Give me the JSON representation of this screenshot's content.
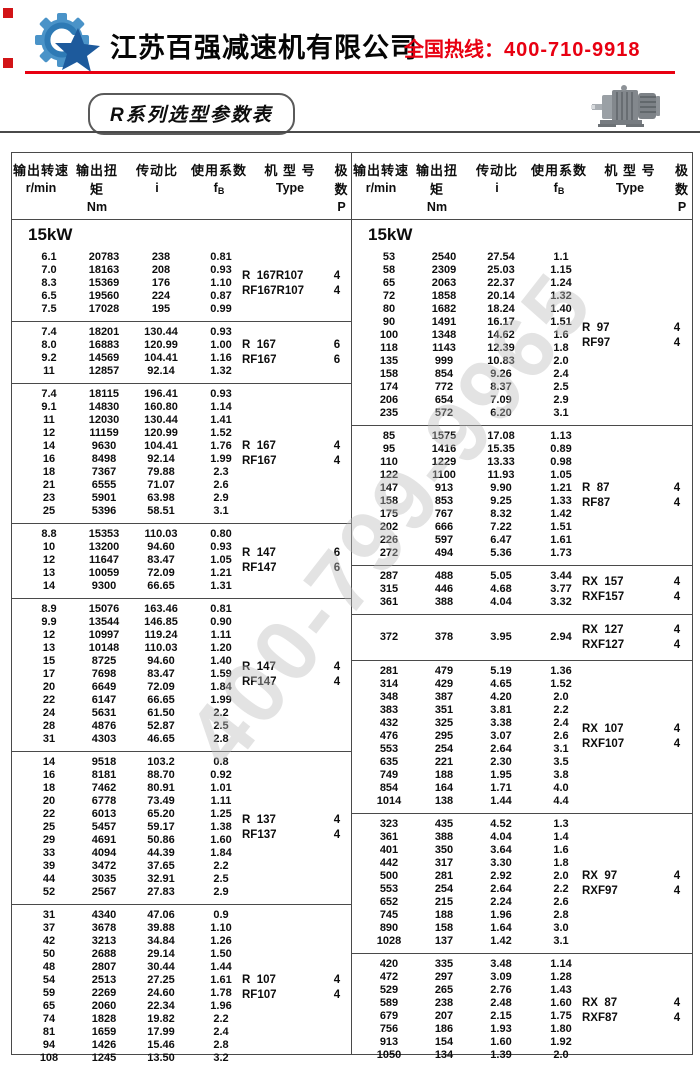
{
  "header": {
    "company": "江苏百强减速机有限公司",
    "hotline_label": "全国热线：",
    "hotline_number": "400-710-9918",
    "badge": "R系列选型参数表",
    "accent_red": "#e80011",
    "logo_blue_light": "#4a93c8",
    "logo_blue_dark": "#1d5a9c"
  },
  "watermark": "400-799-9965",
  "table_header": {
    "columns": [
      {
        "cn": "输出转速",
        "en": "r/min"
      },
      {
        "cn": "输出扭矩",
        "en": "Nm"
      },
      {
        "cn": "传动比",
        "en": "i"
      },
      {
        "cn": "使用系数",
        "en": "f",
        "en_sub": "B"
      },
      {
        "cn": "机 型 号",
        "en": "Type"
      },
      {
        "cn": "极 数",
        "en": "P"
      }
    ],
    "power_label": "15kW"
  },
  "left_sections": [
    {
      "rows": [
        [
          "6.1",
          "20783",
          "238",
          "0.81"
        ],
        [
          "7.0",
          "18163",
          "208",
          "0.93"
        ],
        [
          "8.3",
          "15369",
          "176",
          "1.10"
        ],
        [
          "6.5",
          "19560",
          "224",
          "0.87"
        ],
        [
          "7.5",
          "17028",
          "195",
          "0.99"
        ]
      ],
      "types": [
        {
          "name": "R  167R107",
          "p": "4"
        },
        {
          "name": "RF167R107",
          "p": "4"
        }
      ]
    },
    {
      "rows": [
        [
          "7.4",
          "18201",
          "130.44",
          "0.93"
        ],
        [
          "8.0",
          "16883",
          "120.99",
          "1.00"
        ],
        [
          "9.2",
          "14569",
          "104.41",
          "1.16"
        ],
        [
          "11",
          "12857",
          "92.14",
          "1.32"
        ]
      ],
      "types": [
        {
          "name": "R  167",
          "p": "6"
        },
        {
          "name": "RF167",
          "p": "6"
        }
      ]
    },
    {
      "rows": [
        [
          "7.4",
          "18115",
          "196.41",
          "0.93"
        ],
        [
          "9.1",
          "14830",
          "160.80",
          "1.14"
        ],
        [
          "11",
          "12030",
          "130.44",
          "1.41"
        ],
        [
          "12",
          "11159",
          "120.99",
          "1.52"
        ],
        [
          "14",
          "9630",
          "104.41",
          "1.76"
        ],
        [
          "16",
          "8498",
          "92.14",
          "1.99"
        ],
        [
          "18",
          "7367",
          "79.88",
          "2.3"
        ],
        [
          "21",
          "6555",
          "71.07",
          "2.6"
        ],
        [
          "23",
          "5901",
          "63.98",
          "2.9"
        ],
        [
          "25",
          "5396",
          "58.51",
          "3.1"
        ]
      ],
      "types": [
        {
          "name": "R  167",
          "p": "4"
        },
        {
          "name": "RF167",
          "p": "4"
        }
      ]
    },
    {
      "rows": [
        [
          "8.8",
          "15353",
          "110.03",
          "0.80"
        ],
        [
          "10",
          "13200",
          "94.60",
          "0.93"
        ],
        [
          "12",
          "11647",
          "83.47",
          "1.05"
        ],
        [
          "13",
          "10059",
          "72.09",
          "1.21"
        ],
        [
          "14",
          "9300",
          "66.65",
          "1.31"
        ]
      ],
      "types": [
        {
          "name": "R  147",
          "p": "6"
        },
        {
          "name": "RF147",
          "p": "6"
        }
      ]
    },
    {
      "rows": [
        [
          "8.9",
          "15076",
          "163.46",
          "0.81"
        ],
        [
          "9.9",
          "13544",
          "146.85",
          "0.90"
        ],
        [
          "12",
          "10997",
          "119.24",
          "1.11"
        ],
        [
          "13",
          "10148",
          "110.03",
          "1.20"
        ],
        [
          "15",
          "8725",
          "94.60",
          "1.40"
        ],
        [
          "17",
          "7698",
          "83.47",
          "1.59"
        ],
        [
          "20",
          "6649",
          "72.09",
          "1.84"
        ],
        [
          "22",
          "6147",
          "66.65",
          "1.99"
        ],
        [
          "24",
          "5631",
          "61.50",
          "2.2"
        ],
        [
          "28",
          "4876",
          "52.87",
          "2.5"
        ],
        [
          "31",
          "4303",
          "46.65",
          "2.8"
        ]
      ],
      "types": [
        {
          "name": "R  147",
          "p": "4"
        },
        {
          "name": "RF147",
          "p": "4"
        }
      ]
    },
    {
      "rows": [
        [
          "14",
          "9518",
          "103.2",
          "0.8"
        ],
        [
          "16",
          "8181",
          "88.70",
          "0.92"
        ],
        [
          "18",
          "7462",
          "80.91",
          "1.01"
        ],
        [
          "20",
          "6778",
          "73.49",
          "1.11"
        ],
        [
          "22",
          "6013",
          "65.20",
          "1.25"
        ],
        [
          "25",
          "5457",
          "59.17",
          "1.38"
        ],
        [
          "29",
          "4691",
          "50.86",
          "1.60"
        ],
        [
          "33",
          "4094",
          "44.39",
          "1.84"
        ],
        [
          "39",
          "3472",
          "37.65",
          "2.2"
        ],
        [
          "44",
          "3035",
          "32.91",
          "2.5"
        ],
        [
          "52",
          "2567",
          "27.83",
          "2.9"
        ]
      ],
      "types": [
        {
          "name": "R  137",
          "p": "4"
        },
        {
          "name": "RF137",
          "p": "4"
        }
      ]
    },
    {
      "rows": [
        [
          "31",
          "4340",
          "47.06",
          "0.9"
        ],
        [
          "37",
          "3678",
          "39.88",
          "1.10"
        ],
        [
          "42",
          "3213",
          "34.84",
          "1.26"
        ],
        [
          "50",
          "2688",
          "29.14",
          "1.50"
        ],
        [
          "48",
          "2807",
          "30.44",
          "1.44"
        ],
        [
          "54",
          "2513",
          "27.25",
          "1.61"
        ],
        [
          "59",
          "2269",
          "24.60",
          "1.78"
        ],
        [
          "65",
          "2060",
          "22.34",
          "1.96"
        ],
        [
          "74",
          "1828",
          "19.82",
          "2.2"
        ],
        [
          "81",
          "1659",
          "17.99",
          "2.4"
        ],
        [
          "94",
          "1426",
          "15.46",
          "2.8"
        ],
        [
          "108",
          "1245",
          "13.50",
          "3.2"
        ]
      ],
      "types": [
        {
          "name": "R  107",
          "p": "4"
        },
        {
          "name": "RF107",
          "p": "4"
        }
      ]
    }
  ],
  "right_sections": [
    {
      "rows": [
        [
          "53",
          "2540",
          "27.54",
          "1.1"
        ],
        [
          "58",
          "2309",
          "25.03",
          "1.15"
        ],
        [
          "65",
          "2063",
          "22.37",
          "1.24"
        ],
        [
          "72",
          "1858",
          "20.14",
          "1.32"
        ],
        [
          "80",
          "1682",
          "18.24",
          "1.40"
        ],
        [
          "90",
          "1491",
          "16.17",
          "1.51"
        ],
        [
          "100",
          "1348",
          "14.62",
          "1.6"
        ],
        [
          "118",
          "1143",
          "12.39",
          "1.8"
        ],
        [
          "135",
          "999",
          "10.83",
          "2.0"
        ],
        [
          "158",
          "854",
          "9.26",
          "2.4"
        ],
        [
          "174",
          "772",
          "8.37",
          "2.5"
        ],
        [
          "206",
          "654",
          "7.09",
          "2.9"
        ],
        [
          "235",
          "572",
          "6.20",
          "3.1"
        ]
      ],
      "types": [
        {
          "name": "R  97",
          "p": "4"
        },
        {
          "name": "RF97",
          "p": "4"
        }
      ]
    },
    {
      "rows": [
        [
          "85",
          "1575",
          "17.08",
          "1.13"
        ],
        [
          "95",
          "1416",
          "15.35",
          "0.89"
        ],
        [
          "110",
          "1229",
          "13.33",
          "0.98"
        ],
        [
          "122",
          "1100",
          "11.93",
          "1.05"
        ],
        [
          "147",
          "913",
          "9.90",
          "1.21"
        ],
        [
          "158",
          "853",
          "9.25",
          "1.33"
        ],
        [
          "175",
          "767",
          "8.32",
          "1.42"
        ],
        [
          "202",
          "666",
          "7.22",
          "1.51"
        ],
        [
          "226",
          "597",
          "6.47",
          "1.61"
        ],
        [
          "272",
          "494",
          "5.36",
          "1.73"
        ]
      ],
      "types": [
        {
          "name": "R  87",
          "p": "4"
        },
        {
          "name": "RF87",
          "p": "4"
        }
      ]
    },
    {
      "rows": [
        [
          "287",
          "488",
          "5.05",
          "3.44"
        ],
        [
          "315",
          "446",
          "4.68",
          "3.77"
        ],
        [
          "361",
          "388",
          "4.04",
          "3.32"
        ]
      ],
      "types": [
        {
          "name": "RX  157",
          "p": "4"
        },
        {
          "name": "RXF157",
          "p": "4"
        }
      ]
    },
    {
      "rows": [
        [
          "372",
          "378",
          "3.95",
          "2.94"
        ]
      ],
      "types": [
        {
          "name": "RX  127",
          "p": "4"
        },
        {
          "name": "RXF127",
          "p": "4"
        }
      ]
    },
    {
      "rows": [
        [
          "281",
          "479",
          "5.19",
          "1.36"
        ],
        [
          "314",
          "429",
          "4.65",
          "1.52"
        ],
        [
          "348",
          "387",
          "4.20",
          "2.0"
        ],
        [
          "383",
          "351",
          "3.81",
          "2.2"
        ],
        [
          "432",
          "325",
          "3.38",
          "2.4"
        ],
        [
          "476",
          "295",
          "3.07",
          "2.6"
        ],
        [
          "553",
          "254",
          "2.64",
          "3.1"
        ],
        [
          "635",
          "221",
          "2.30",
          "3.5"
        ],
        [
          "749",
          "188",
          "1.95",
          "3.8"
        ],
        [
          "854",
          "164",
          "1.71",
          "4.0"
        ],
        [
          "1014",
          "138",
          "1.44",
          "4.4"
        ]
      ],
      "types": [
        {
          "name": "RX  107",
          "p": "4"
        },
        {
          "name": "RXF107",
          "p": "4"
        }
      ]
    },
    {
      "rows": [
        [
          "323",
          "435",
          "4.52",
          "1.3"
        ],
        [
          "361",
          "388",
          "4.04",
          "1.4"
        ],
        [
          "401",
          "350",
          "3.64",
          "1.6"
        ],
        [
          "442",
          "317",
          "3.30",
          "1.8"
        ],
        [
          "500",
          "281",
          "2.92",
          "2.0"
        ],
        [
          "553",
          "254",
          "2.64",
          "2.2"
        ],
        [
          "652",
          "215",
          "2.24",
          "2.6"
        ],
        [
          "745",
          "188",
          "1.96",
          "2.8"
        ],
        [
          "890",
          "158",
          "1.64",
          "3.0"
        ],
        [
          "1028",
          "137",
          "1.42",
          "3.1"
        ]
      ],
      "types": [
        {
          "name": "RX  97",
          "p": "4"
        },
        {
          "name": "RXF97",
          "p": "4"
        }
      ]
    },
    {
      "rows": [
        [
          "420",
          "335",
          "3.48",
          "1.14"
        ],
        [
          "472",
          "297",
          "3.09",
          "1.28"
        ],
        [
          "529",
          "265",
          "2.76",
          "1.43"
        ],
        [
          "589",
          "238",
          "2.48",
          "1.60"
        ],
        [
          "679",
          "207",
          "2.15",
          "1.75"
        ],
        [
          "756",
          "186",
          "1.93",
          "1.80"
        ],
        [
          "913",
          "154",
          "1.60",
          "1.92"
        ],
        [
          "1050",
          "134",
          "1.39",
          "2.0"
        ]
      ],
      "types": [
        {
          "name": "RX  87",
          "p": "4"
        },
        {
          "name": "RXF87",
          "p": "4"
        }
      ]
    }
  ]
}
